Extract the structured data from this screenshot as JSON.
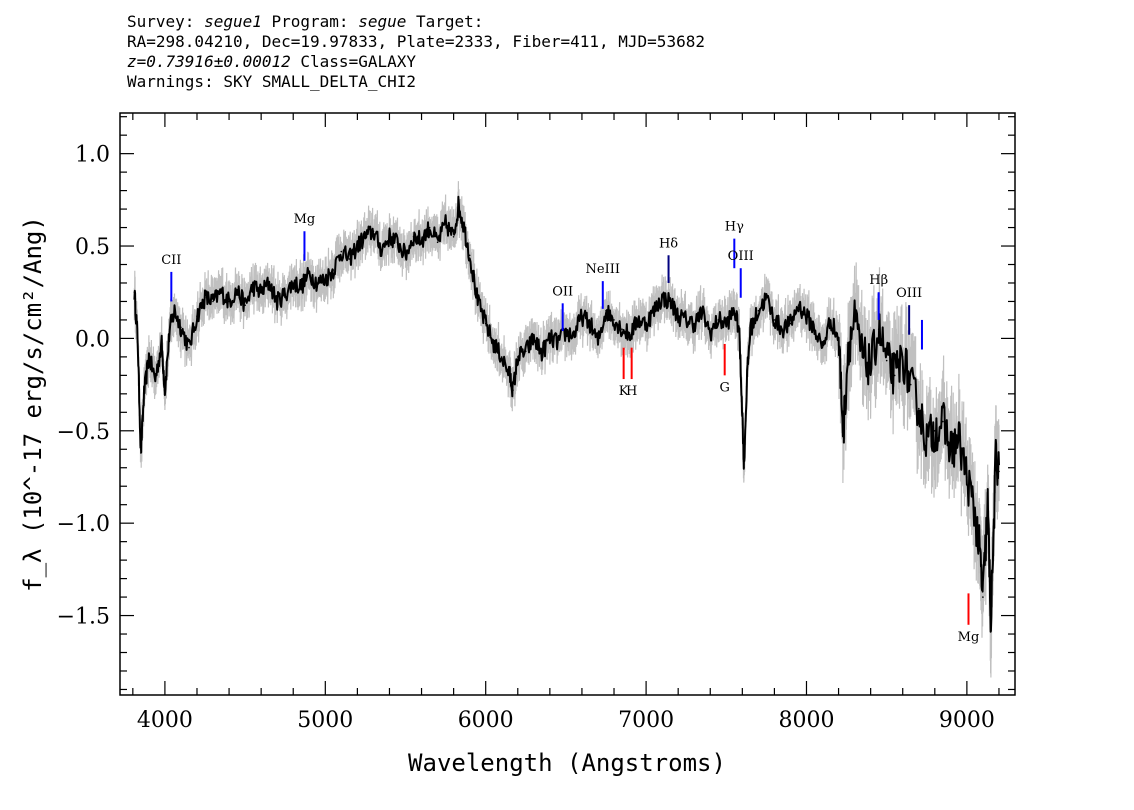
{
  "header": {
    "line1_a": "Survey: ",
    "survey": "segue1",
    "line1_b": " Program: ",
    "program": "segue",
    "line1_c": " Target:",
    "line2": "RA=298.04210, Dec=19.97833, Plate=2333, Fiber=411, MJD=53682",
    "redshift": "z=0.73916±0.00012",
    "line3_b": " Class=GALAXY",
    "line4": "Warnings: SKY SMALL_DELTA_CHI2"
  },
  "chart_data": {
    "type": "line",
    "xlabel": "Wavelength (Angstroms)",
    "ylabel": "f_λ (10^-17 erg/s/cm²/Ang)",
    "xlim": [
      3720,
      9300
    ],
    "ylim": [
      -1.93,
      1.22
    ],
    "xticks": [
      4000,
      5000,
      6000,
      7000,
      8000,
      9000
    ],
    "xtick_labels": [
      "4000",
      "5000",
      "6000",
      "7000",
      "8000",
      "9000"
    ],
    "yticks": [
      1.0,
      0.5,
      0.0,
      -0.5,
      -1.0,
      -1.5
    ],
    "ytick_labels": [
      "1.0",
      "0.5",
      "0.0",
      "−0.5",
      "−1.0",
      "−1.5"
    ],
    "series": [
      {
        "color": "#000000",
        "x": [
          3810,
          3830,
          3850,
          3870,
          3900,
          3940,
          3980,
          4000,
          4030,
          4060,
          4100,
          4150,
          4200,
          4250,
          4300,
          4350,
          4400,
          4450,
          4500,
          4550,
          4600,
          4650,
          4700,
          4750,
          4800,
          4850,
          4900,
          4950,
          5000,
          5050,
          5100,
          5150,
          5200,
          5250,
          5300,
          5350,
          5400,
          5450,
          5500,
          5550,
          5600,
          5650,
          5700,
          5750,
          5800,
          5830,
          5860,
          5900,
          5950,
          6000,
          6050,
          6100,
          6150,
          6170,
          6200,
          6250,
          6300,
          6350,
          6400,
          6450,
          6500,
          6550,
          6600,
          6650,
          6700,
          6750,
          6800,
          6850,
          6900,
          6950,
          7000,
          7050,
          7100,
          7150,
          7200,
          7250,
          7300,
          7350,
          7400,
          7450,
          7500,
          7550,
          7580,
          7600,
          7610,
          7630,
          7650,
          7700,
          7750,
          7800,
          7850,
          7900,
          7950,
          8000,
          8050,
          8100,
          8150,
          8200,
          8230,
          8260,
          8300,
          8350,
          8400,
          8450,
          8500,
          8550,
          8600,
          8650,
          8700,
          8750,
          8800,
          8850,
          8900,
          8950,
          9000,
          9050,
          9080,
          9100,
          9130,
          9150,
          9180,
          9200
        ],
        "y": [
          0.25,
          0.0,
          -0.62,
          -0.3,
          -0.1,
          -0.22,
          -0.03,
          -0.28,
          0.05,
          0.15,
          0.06,
          -0.05,
          0.12,
          0.22,
          0.2,
          0.25,
          0.2,
          0.26,
          0.18,
          0.28,
          0.25,
          0.3,
          0.2,
          0.24,
          0.3,
          0.28,
          0.35,
          0.3,
          0.32,
          0.37,
          0.47,
          0.43,
          0.5,
          0.55,
          0.58,
          0.48,
          0.55,
          0.52,
          0.45,
          0.55,
          0.53,
          0.6,
          0.52,
          0.62,
          0.55,
          0.72,
          0.62,
          0.45,
          0.2,
          0.08,
          -0.03,
          -0.1,
          -0.2,
          -0.28,
          -0.1,
          -0.07,
          0.0,
          -0.08,
          0.0,
          -0.02,
          0.03,
          0.02,
          0.12,
          0.08,
          -0.02,
          0.15,
          0.1,
          0.05,
          0.02,
          0.1,
          0.08,
          0.15,
          0.22,
          0.2,
          0.12,
          0.1,
          0.08,
          0.14,
          0.03,
          0.1,
          0.08,
          0.15,
          0.05,
          -0.4,
          -0.7,
          -0.2,
          0.05,
          0.15,
          0.22,
          0.1,
          0.05,
          0.08,
          0.18,
          0.12,
          0.05,
          -0.05,
          0.1,
          0.0,
          -0.5,
          -0.05,
          0.1,
          -0.1,
          -0.15,
          0.05,
          -0.12,
          -0.2,
          -0.1,
          -0.25,
          -0.38,
          -0.55,
          -0.5,
          -0.45,
          -0.6,
          -0.55,
          -0.75,
          -0.95,
          -1.15,
          -1.4,
          -0.9,
          -1.55,
          -0.65,
          -0.72
        ]
      }
    ],
    "lines": [
      {
        "label": "CII",
        "x": 4040,
        "color": "#0000ff",
        "y_low": 0.2,
        "y_high": 0.36,
        "label_pos": "above"
      },
      {
        "label": "Mg",
        "x": 4870,
        "color": "#0000ff",
        "y_low": 0.42,
        "y_high": 0.58,
        "label_pos": "above"
      },
      {
        "label": "OII",
        "x": 6480,
        "color": "#0000ff",
        "y_low": 0.04,
        "y_high": 0.19,
        "label_pos": "above"
      },
      {
        "label": "NeIII",
        "x": 6730,
        "color": "#0000ff",
        "y_low": 0.16,
        "y_high": 0.31,
        "label_pos": "above"
      },
      {
        "label": "Hδ",
        "x": 7140,
        "color": "#000080",
        "y_low": 0.3,
        "y_high": 0.45,
        "label_pos": "above"
      },
      {
        "label": "Hγ",
        "x": 7550,
        "color": "#0000ff",
        "y_low": 0.38,
        "y_high": 0.54,
        "label_pos": "above"
      },
      {
        "label": "OIII",
        "x": 7590,
        "color": "#0000ff",
        "y_low": 0.22,
        "y_high": 0.38,
        "label_pos": "above"
      },
      {
        "label": "Hβ",
        "x": 8450,
        "color": "#0000ff",
        "y_low": 0.1,
        "y_high": 0.25,
        "label_pos": "above"
      },
      {
        "label": "OIII",
        "x": 8640,
        "color": "#000080",
        "y_low": 0.02,
        "y_high": 0.18,
        "label_pos": "above"
      },
      {
        "label": "",
        "x": 8720,
        "color": "#0000ff",
        "y_low": -0.06,
        "y_high": 0.1,
        "label_pos": "above"
      },
      {
        "label": "K",
        "x": 6860,
        "color": "#ff0000",
        "y_low": -0.22,
        "y_high": -0.05,
        "label_pos": "below"
      },
      {
        "label": "H",
        "x": 6910,
        "color": "#ff0000",
        "y_low": -0.22,
        "y_high": -0.05,
        "label_pos": "below"
      },
      {
        "label": "G",
        "x": 7490,
        "color": "#ff0000",
        "y_low": -0.2,
        "y_high": -0.03,
        "label_pos": "below"
      },
      {
        "label": "Mg",
        "x": 9010,
        "color": "#ff0000",
        "y_low": -1.55,
        "y_high": -1.38,
        "label_pos": "below"
      }
    ],
    "grid": false,
    "legend": "none"
  }
}
